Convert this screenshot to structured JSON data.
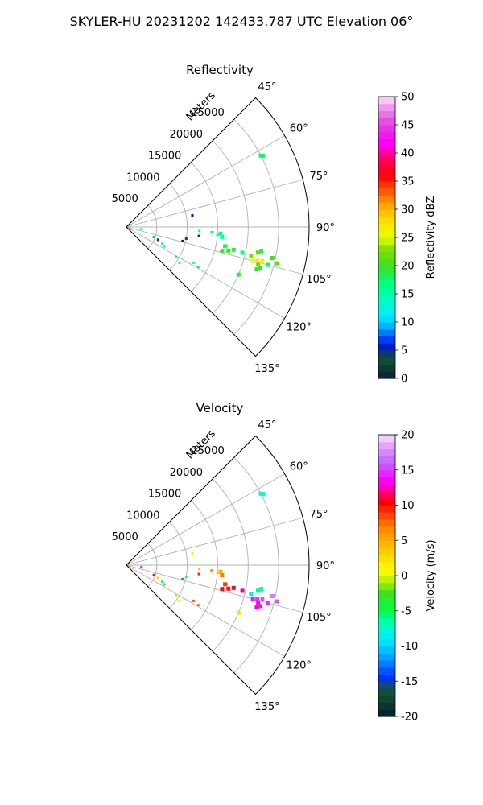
{
  "suptitle": "SKYLER-HU  20231202  142433.787 UTC Elevation 06°",
  "chart_data": [
    {
      "type": "polar-sector",
      "title": "Reflectivity",
      "r_label": "Meters",
      "r_ticks": [
        "5000",
        "10000",
        "15000",
        "20000",
        "25000"
      ],
      "theta_ticks": [
        "45°",
        "60°",
        "75°",
        "90°",
        "105°",
        "120°",
        "135°"
      ],
      "theta_range_deg": [
        45,
        135
      ],
      "r_max": 30000,
      "grid": true,
      "colorbar": {
        "label": "Reflectivity dBZ",
        "ticks": [
          "0",
          "5",
          "10",
          "15",
          "20",
          "25",
          "30",
          "35",
          "40",
          "45",
          "50"
        ],
        "range": [
          0,
          50
        ]
      },
      "field": "reflectivity",
      "gates": [
        {
          "az": 62,
          "r": 25000,
          "value": 17
        },
        {
          "az": 62.5,
          "r": 25300,
          "value": 18
        },
        {
          "az": 80,
          "r": 11000,
          "value": 5
        },
        {
          "az": 97,
          "r": 12000,
          "value": 2
        },
        {
          "az": 101,
          "r": 10000,
          "value": 3
        },
        {
          "az": 104,
          "r": 9500,
          "value": 1
        },
        {
          "az": 98,
          "r": 2500,
          "value": 14
        },
        {
          "az": 110,
          "r": 4800,
          "value": 9
        },
        {
          "az": 112,
          "r": 5600,
          "value": 6
        },
        {
          "az": 115,
          "r": 6500,
          "value": 13
        },
        {
          "az": 117,
          "r": 7000,
          "value": 16
        },
        {
          "az": 93,
          "r": 12000,
          "value": 15
        },
        {
          "az": 93.5,
          "r": 14000,
          "value": 17
        },
        {
          "az": 94,
          "r": 15500,
          "value": 16
        },
        {
          "az": 95,
          "r": 15000,
          "value": 15
        },
        {
          "az": 96,
          "r": 15800,
          "value": 14
        },
        {
          "az": 101,
          "r": 16500,
          "value": 18
        },
        {
          "az": 102,
          "r": 18000,
          "value": 19
        },
        {
          "az": 102.5,
          "r": 19500,
          "value": 17
        },
        {
          "az": 103,
          "r": 17200,
          "value": 20
        },
        {
          "az": 104,
          "r": 16200,
          "value": 19
        },
        {
          "az": 103,
          "r": 21000,
          "value": 23
        },
        {
          "az": 101,
          "r": 22000,
          "value": 21
        },
        {
          "az": 100,
          "r": 22500,
          "value": 19
        },
        {
          "az": 104,
          "r": 23000,
          "value": 26
        },
        {
          "az": 104.5,
          "r": 22200,
          "value": 27
        },
        {
          "az": 105,
          "r": 21500,
          "value": 25
        },
        {
          "az": 106,
          "r": 22500,
          "value": 22
        },
        {
          "az": 102,
          "r": 24500,
          "value": 20
        },
        {
          "az": 103.5,
          "r": 25500,
          "value": 21
        },
        {
          "az": 105,
          "r": 24000,
          "value": 18
        },
        {
          "az": 107,
          "r": 23000,
          "value": 19
        },
        {
          "az": 108,
          "r": 22500,
          "value": 20
        },
        {
          "az": 118,
          "r": 12500,
          "value": 14
        },
        {
          "az": 119,
          "r": 13500,
          "value": 18
        },
        {
          "az": 121,
          "r": 9500,
          "value": 12
        },
        {
          "az": 124,
          "r": 10500,
          "value": 17
        },
        {
          "az": 113,
          "r": 20000,
          "value": 19
        }
      ]
    },
    {
      "type": "polar-sector",
      "title": "Velocity",
      "r_label": "Meters",
      "r_ticks": [
        "5000",
        "10000",
        "15000",
        "20000",
        "25000"
      ],
      "theta_ticks": [
        "45°",
        "60°",
        "75°",
        "90°",
        "105°",
        "120°",
        "135°"
      ],
      "theta_range_deg": [
        45,
        135
      ],
      "r_max": 30000,
      "grid": true,
      "colorbar": {
        "label": "Velocity (m/s)",
        "ticks": [
          "-20",
          "-15",
          "-10",
          "-5",
          "0",
          "5",
          "10",
          "15",
          "20"
        ],
        "range": [
          -20,
          20
        ]
      },
      "field": "velocity",
      "gates": [
        {
          "az": 62,
          "r": 25000,
          "value": -8
        },
        {
          "az": 62.5,
          "r": 25300,
          "value": -7
        },
        {
          "az": 80,
          "r": 11000,
          "value": 2
        },
        {
          "az": 97,
          "r": 12000,
          "value": 12
        },
        {
          "az": 101,
          "r": 10000,
          "value": -6
        },
        {
          "az": 104,
          "r": 9500,
          "value": 9
        },
        {
          "az": 98,
          "r": 2500,
          "value": 13
        },
        {
          "az": 110,
          "r": 4800,
          "value": 11
        },
        {
          "az": 112,
          "r": 5600,
          "value": 3
        },
        {
          "az": 115,
          "r": 6500,
          "value": -5
        },
        {
          "az": 117,
          "r": 7000,
          "value": -3
        },
        {
          "az": 93,
          "r": 12000,
          "value": 4
        },
        {
          "az": 93.5,
          "r": 14000,
          "value": 6
        },
        {
          "az": 94,
          "r": 15500,
          "value": 5
        },
        {
          "az": 95,
          "r": 15000,
          "value": 3
        },
        {
          "az": 96,
          "r": 15800,
          "value": 7
        },
        {
          "az": 101,
          "r": 16500,
          "value": 9
        },
        {
          "az": 102,
          "r": 18000,
          "value": 11
        },
        {
          "az": 102.5,
          "r": 19500,
          "value": 12
        },
        {
          "az": 103,
          "r": 17200,
          "value": 10
        },
        {
          "az": 104,
          "r": 16200,
          "value": 11
        },
        {
          "az": 103,
          "r": 21000,
          "value": -8
        },
        {
          "az": 101,
          "r": 22000,
          "value": -6
        },
        {
          "az": 100,
          "r": 22500,
          "value": -7
        },
        {
          "az": 104,
          "r": 23000,
          "value": 16
        },
        {
          "az": 104.5,
          "r": 22200,
          "value": 15
        },
        {
          "az": 105,
          "r": 21500,
          "value": 14
        },
        {
          "az": 106,
          "r": 22500,
          "value": 13
        },
        {
          "az": 102,
          "r": 24500,
          "value": 17
        },
        {
          "az": 103.5,
          "r": 25500,
          "value": 16
        },
        {
          "az": 105,
          "r": 24000,
          "value": 15
        },
        {
          "az": 107,
          "r": 23000,
          "value": 14
        },
        {
          "az": 108,
          "r": 22500,
          "value": 13
        },
        {
          "az": 118,
          "r": 12500,
          "value": 8
        },
        {
          "az": 119,
          "r": 13500,
          "value": 7
        },
        {
          "az": 121,
          "r": 9500,
          "value": 3
        },
        {
          "az": 124,
          "r": 10500,
          "value": 2
        },
        {
          "az": 113,
          "r": 20000,
          "value": 0
        }
      ]
    }
  ]
}
